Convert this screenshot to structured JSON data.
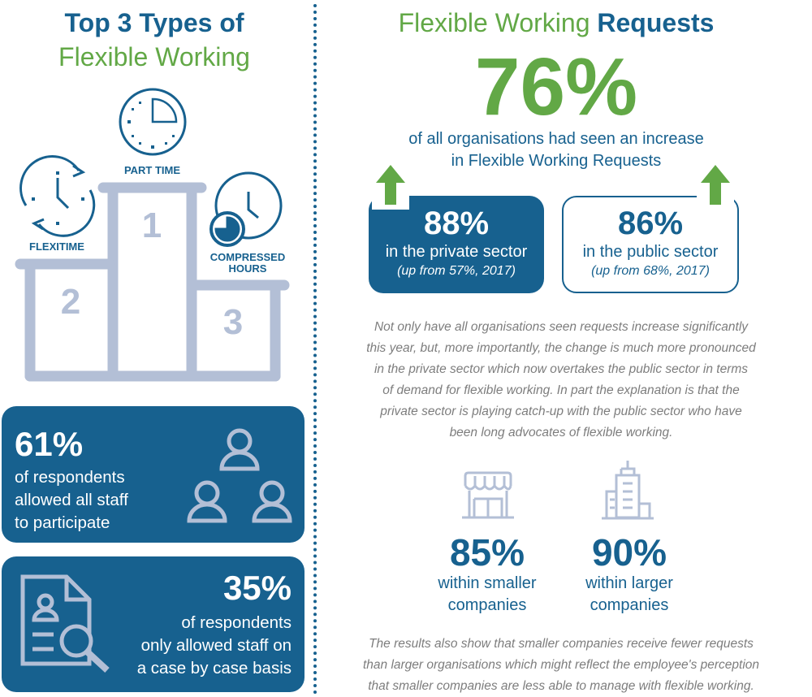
{
  "left": {
    "title_line1": "Top 3 Types of",
    "title_line2": "Flexible Working",
    "podium": {
      "first": {
        "rank": "1",
        "label": "PART TIME"
      },
      "second": {
        "rank": "2",
        "label": "FLEXITIME"
      },
      "third": {
        "rank": "3",
        "label_line1": "COMPRESSED",
        "label_line2": "HOURS"
      }
    },
    "card1": {
      "value": "61%",
      "line1": "of respondents",
      "line2": "allowed all staff",
      "line3": "to participate"
    },
    "card2": {
      "value": "35%",
      "line1": "of respondents",
      "line2": "only allowed staff on",
      "line3": "a case by case basis"
    }
  },
  "right": {
    "title_green": "Flexible Working",
    "title_blue": "Requests",
    "headline": {
      "value": "76%",
      "line1": "of all organisations had seen an increase",
      "line2": "in Flexible Working Requests"
    },
    "private": {
      "value": "88%",
      "label": "in the private sector",
      "note": "(up from 57%, 2017)"
    },
    "public": {
      "value": "86%",
      "label": "in the public sector",
      "note": "(up from 68%, 2017)"
    },
    "paragraph1": [
      "Not only have all organisations seen requests increase significantly",
      "this year, but, more importantly, the change is much more pronounced",
      "in the private sector which now overtakes the public sector in terms",
      "of demand for flexible working. In part the explanation is that the",
      "private sector is playing catch-up with the public sector who have",
      "been long advocates of flexible working."
    ],
    "smaller": {
      "value": "85%",
      "line1": "within smaller",
      "line2": "companies"
    },
    "larger": {
      "value": "90%",
      "line1": "within larger",
      "line2": "companies"
    },
    "paragraph2": [
      "The results also show that smaller companies receive fewer requests",
      "than larger organisations which might reflect the employee's perception",
      "that smaller companies are less able to manage with flexible working."
    ]
  },
  "colors": {
    "navy": "#17618f",
    "green": "#62a846",
    "light": "#b3bfd6",
    "gray": "#7d7d7d"
  }
}
